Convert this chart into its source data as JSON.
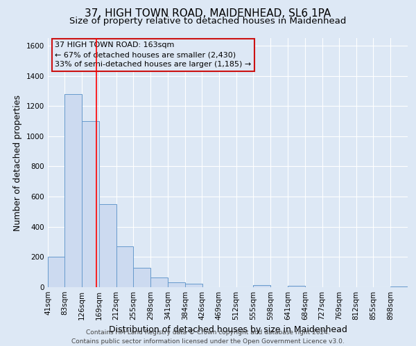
{
  "title1": "37, HIGH TOWN ROAD, MAIDENHEAD, SL6 1PA",
  "title2": "Size of property relative to detached houses in Maidenhead",
  "xlabel": "Distribution of detached houses by size in Maidenhead",
  "ylabel": "Number of detached properties",
  "bar_labels": [
    "41sqm",
    "83sqm",
    "126sqm",
    "169sqm",
    "212sqm",
    "255sqm",
    "298sqm",
    "341sqm",
    "384sqm",
    "426sqm",
    "469sqm",
    "512sqm",
    "555sqm",
    "598sqm",
    "641sqm",
    "684sqm",
    "727sqm",
    "769sqm",
    "812sqm",
    "855sqm",
    "898sqm"
  ],
  "bar_values": [
    200,
    1280,
    1100,
    550,
    270,
    130,
    65,
    30,
    25,
    0,
    0,
    0,
    15,
    0,
    10,
    0,
    0,
    0,
    0,
    0,
    5
  ],
  "bar_left_edges": [
    41,
    83,
    126,
    169,
    212,
    255,
    298,
    341,
    384,
    426,
    469,
    512,
    555,
    598,
    641,
    684,
    727,
    769,
    812,
    855,
    898
  ],
  "bin_width": 43,
  "bar_color": "#ccdaf0",
  "bar_edge_color": "#6699cc",
  "red_line_x": 163,
  "ylim": [
    0,
    1650
  ],
  "yticks": [
    0,
    200,
    400,
    600,
    800,
    1000,
    1200,
    1400,
    1600
  ],
  "annotation_title": "37 HIGH TOWN ROAD: 163sqm",
  "annotation_line1": "← 67% of detached houses are smaller (2,430)",
  "annotation_line2": "33% of semi-detached houses are larger (1,185) →",
  "footer1": "Contains HM Land Registry data © Crown copyright and database right 2024.",
  "footer2": "Contains public sector information licensed under the Open Government Licence v3.0.",
  "bg_color": "#dde8f5",
  "plot_bg_color": "#dde8f5",
  "grid_color": "#ffffff",
  "title_fontsize": 11,
  "subtitle_fontsize": 9.5,
  "axis_label_fontsize": 9,
  "tick_fontsize": 7.5,
  "footer_fontsize": 6.5,
  "ann_fontsize": 8
}
